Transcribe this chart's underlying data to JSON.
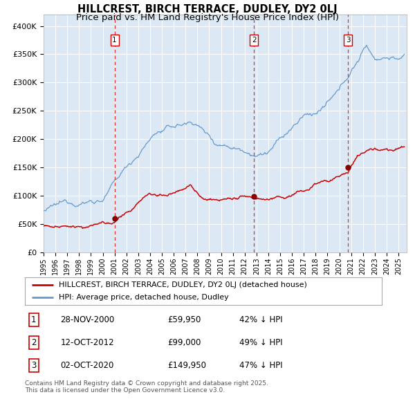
{
  "title": "HILLCREST, BIRCH TERRACE, DUDLEY, DY2 0LJ",
  "subtitle": "Price paid vs. HM Land Registry's House Price Index (HPI)",
  "title_fontsize": 10.5,
  "subtitle_fontsize": 9.5,
  "bg_color": "#dce9f5",
  "plot_bg_color": "#dce9f5",
  "ylim": [
    0,
    420000
  ],
  "yticks": [
    0,
    50000,
    100000,
    150000,
    200000,
    250000,
    300000,
    350000,
    400000
  ],
  "ytick_labels": [
    "£0",
    "£50K",
    "£100K",
    "£150K",
    "£200K",
    "£250K",
    "£300K",
    "£350K",
    "£400K"
  ],
  "sale_dates": [
    2001.0,
    2012.8,
    2020.75
  ],
  "sale_prices": [
    59950,
    99000,
    149950
  ],
  "sale_labels": [
    "1",
    "2",
    "3"
  ],
  "vline_dates": [
    2001.0,
    2012.8,
    2020.75
  ],
  "legend_entries": [
    "HILLCREST, BIRCH TERRACE, DUDLEY, DY2 0LJ (detached house)",
    "HPI: Average price, detached house, Dudley"
  ],
  "table_rows": [
    [
      "1",
      "28-NOV-2000",
      "£59,950",
      "42% ↓ HPI"
    ],
    [
      "2",
      "12-OCT-2012",
      "£99,000",
      "49% ↓ HPI"
    ],
    [
      "3",
      "02-OCT-2020",
      "£149,950",
      "47% ↓ HPI"
    ]
  ],
  "footer": "Contains HM Land Registry data © Crown copyright and database right 2025.\nThis data is licensed under the Open Government Licence v3.0.",
  "red_line_color": "#cc0000",
  "blue_line_color": "#6699cc",
  "vline_color": "#dd3333",
  "marker_color": "#880000",
  "grid_color": "#ffffff"
}
